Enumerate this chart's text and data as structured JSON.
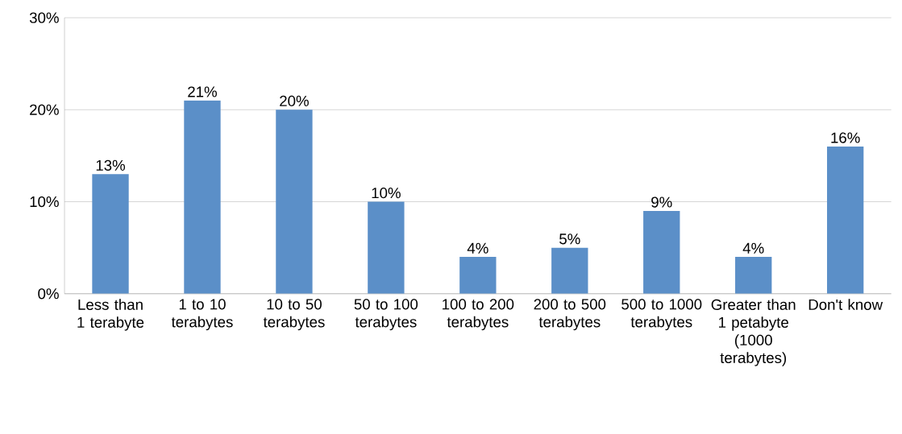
{
  "chart_data": {
    "type": "bar",
    "categories": [
      "Less than 1 terabyte",
      "1 to 10 terabytes",
      "10 to 50 terabytes",
      "50 to 100 terabytes",
      "100 to 200 terabytes",
      "200 to 500 terabytes",
      "500 to 1000 terabytes",
      "Greater than 1 petabyte (1000 terabytes)",
      "Don't know"
    ],
    "values": [
      13,
      21,
      20,
      10,
      4,
      5,
      9,
      4,
      16
    ],
    "value_labels": [
      "13%",
      "21%",
      "20%",
      "10%",
      "4%",
      "5%",
      "9%",
      "4%",
      "16%"
    ],
    "color": "#5b8fc8",
    "ylim": [
      0,
      30
    ],
    "yticks": [
      {
        "value": 0,
        "label": "0%"
      },
      {
        "value": 10,
        "label": "10%"
      },
      {
        "value": 20,
        "label": "20%"
      },
      {
        "value": 30,
        "label": "30%"
      }
    ],
    "grid": "y"
  }
}
